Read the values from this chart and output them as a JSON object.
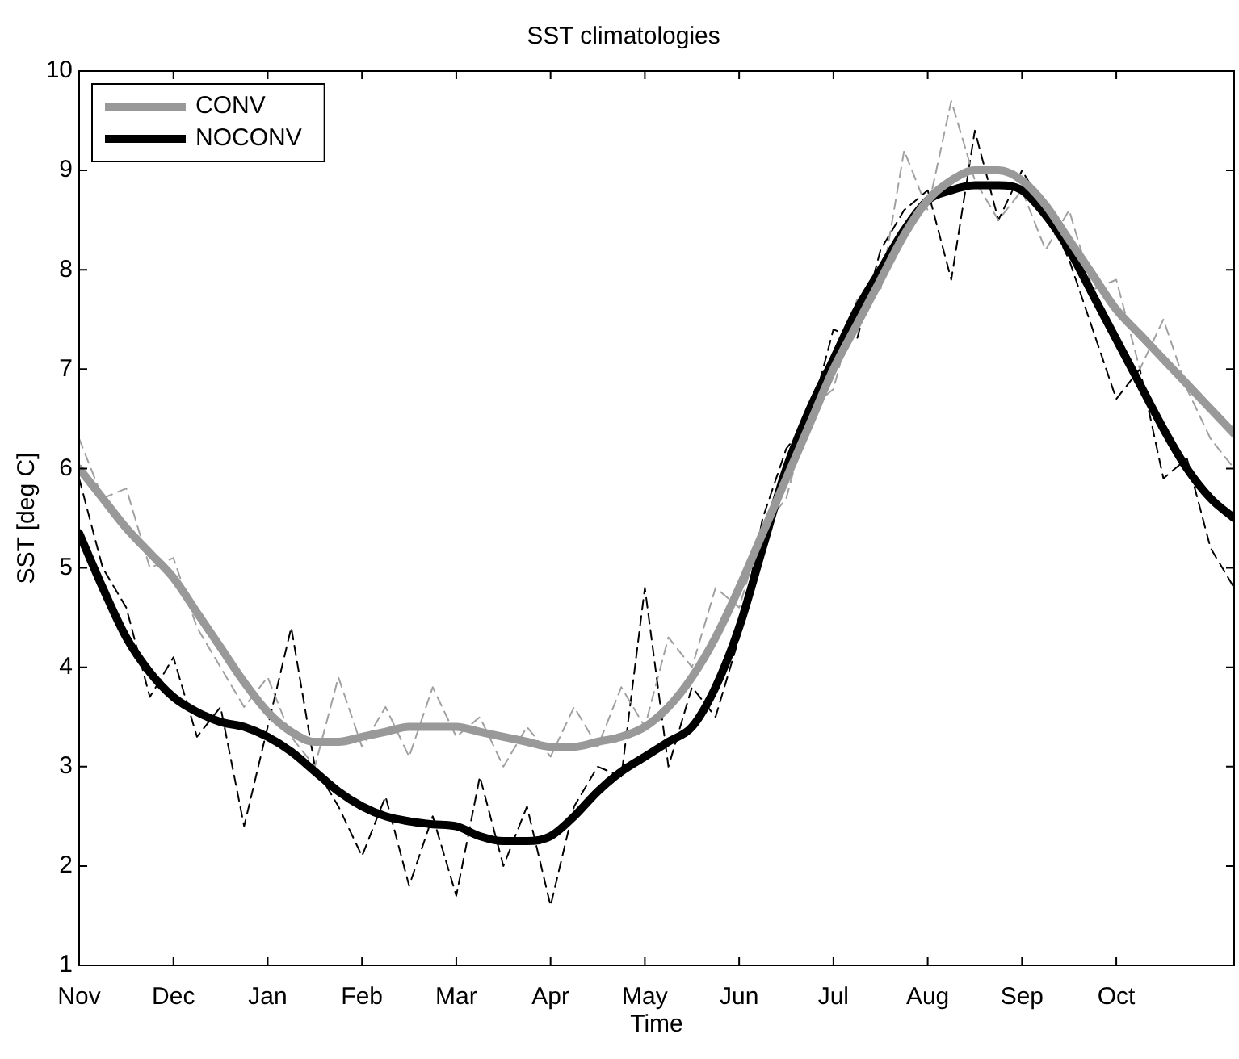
{
  "chart_data": {
    "type": "line",
    "title": "SST climatologies",
    "xlabel": "Time",
    "ylabel": "SST [deg C]",
    "categories": [
      "Nov",
      null,
      null,
      null,
      "Dec",
      null,
      null,
      null,
      "Jan",
      null,
      null,
      null,
      "Feb",
      null,
      null,
      null,
      "Mar",
      null,
      null,
      null,
      "Apr",
      null,
      null,
      null,
      "May",
      null,
      null,
      null,
      "Jun",
      null,
      null,
      null,
      "Jul",
      null,
      null,
      null,
      "Aug",
      null,
      null,
      null,
      "Sep",
      null,
      null,
      null,
      "Oct",
      null,
      null,
      null,
      null,
      null
    ],
    "ylim": [
      1,
      10
    ],
    "yticks": [
      1,
      2,
      3,
      4,
      5,
      6,
      7,
      8,
      9,
      10
    ],
    "grid": false,
    "legend": "top left",
    "marker": "none",
    "series": [
      {
        "color": "#a0a0a0",
        "line_style": "dashed",
        "values": [
          6.3,
          5.7,
          5.8,
          5.0,
          5.1,
          4.4,
          4.0,
          3.6,
          3.9,
          3.3,
          3.0,
          3.9,
          3.2,
          3.6,
          3.1,
          3.8,
          3.3,
          3.5,
          3.0,
          3.4,
          3.1,
          3.6,
          3.2,
          3.8,
          3.4,
          4.3,
          4.0,
          4.8,
          4.6,
          5.4,
          5.7,
          6.6,
          6.8,
          7.7,
          7.8,
          9.2,
          8.6,
          9.7,
          8.9,
          8.5,
          8.8,
          8.2,
          8.6,
          7.8,
          7.9,
          7.0,
          7.5,
          6.8,
          6.3,
          6.0
        ]
      },
      {
        "color": "#000000",
        "line_style": "dashed",
        "values": [
          5.9,
          5.0,
          4.6,
          3.7,
          4.1,
          3.3,
          3.6,
          2.4,
          3.4,
          4.4,
          3.0,
          2.6,
          2.1,
          2.7,
          1.8,
          2.5,
          1.7,
          2.9,
          2.0,
          2.6,
          1.6,
          2.6,
          3.0,
          2.9,
          4.8,
          3.0,
          3.8,
          3.5,
          4.3,
          5.5,
          6.2,
          6.5,
          7.4,
          7.3,
          8.2,
          8.6,
          8.8,
          7.9,
          9.4,
          8.5,
          9.0,
          8.6,
          8.1,
          7.4,
          6.7,
          7.0,
          5.9,
          6.1,
          5.2,
          4.8
        ]
      },
      {
        "name": "CONV",
        "color": "#999999",
        "line_style": "solid",
        "values": [
          6.0,
          5.7,
          5.4,
          5.15,
          4.9,
          4.55,
          4.2,
          3.85,
          3.55,
          3.35,
          3.25,
          3.25,
          3.3,
          3.35,
          3.4,
          3.4,
          3.4,
          3.35,
          3.3,
          3.25,
          3.2,
          3.2,
          3.25,
          3.3,
          3.4,
          3.6,
          3.9,
          4.3,
          4.8,
          5.35,
          5.9,
          6.45,
          7.0,
          7.45,
          7.9,
          8.35,
          8.7,
          8.9,
          9.0,
          9.0,
          8.9,
          8.65,
          8.3,
          7.95,
          7.6,
          7.35,
          7.1,
          6.85,
          6.6,
          6.35
        ]
      },
      {
        "name": "NOCONV",
        "color": "#000000",
        "line_style": "solid",
        "values": [
          5.35,
          4.8,
          4.3,
          3.95,
          3.7,
          3.55,
          3.45,
          3.4,
          3.3,
          3.15,
          2.95,
          2.75,
          2.6,
          2.5,
          2.45,
          2.42,
          2.4,
          2.3,
          2.25,
          2.25,
          2.3,
          2.5,
          2.75,
          2.95,
          3.1,
          3.25,
          3.4,
          3.8,
          4.4,
          5.2,
          6.0,
          6.6,
          7.1,
          7.6,
          8.0,
          8.4,
          8.7,
          8.8,
          8.85,
          8.85,
          8.8,
          8.55,
          8.2,
          7.75,
          7.3,
          6.85,
          6.4,
          6.0,
          5.7,
          5.5
        ]
      }
    ]
  }
}
